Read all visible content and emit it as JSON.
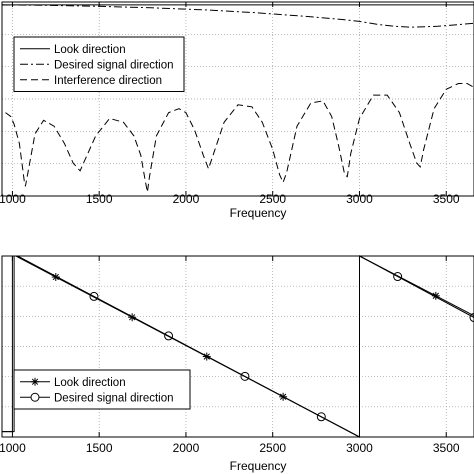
{
  "chart_data": [
    {
      "type": "line",
      "xlabel": "Frequency",
      "ylabel": "",
      "xlim": [
        940,
        3660
      ],
      "ylim": [
        0,
        1
      ],
      "grid": true,
      "legend_position": "top-left",
      "xticks": [
        1000,
        1500,
        2000,
        2500,
        3000,
        3500
      ],
      "series": [
        {
          "name": "Look direction",
          "style": "solid",
          "x": [
            940,
            3660
          ],
          "y": [
            0.985,
            0.985
          ]
        },
        {
          "name": "Desired signal direction",
          "style": "dash-dot",
          "x": [
            940,
            1200,
            1500,
            1800,
            2100,
            2400,
            2700,
            2900,
            3000,
            3100,
            3200,
            3300,
            3450,
            3660
          ],
          "y": [
            0.985,
            0.983,
            0.978,
            0.97,
            0.96,
            0.945,
            0.925,
            0.91,
            0.9,
            0.885,
            0.875,
            0.87,
            0.875,
            0.89
          ]
        },
        {
          "name": "Interference direction",
          "style": "dashed",
          "x": [
            960,
            990,
            1010,
            1040,
            1068,
            1075,
            1085,
            1130,
            1180,
            1240,
            1300,
            1350,
            1390,
            1420,
            1480,
            1560,
            1640,
            1700,
            1740,
            1765,
            1778,
            1790,
            1830,
            1900,
            1960,
            2000,
            2050,
            2100,
            2130,
            2160,
            2220,
            2300,
            2380,
            2440,
            2500,
            2540,
            2560,
            2580,
            2640,
            2720,
            2790,
            2840,
            2880,
            2915,
            2930,
            2950,
            3000,
            3080,
            3160,
            3230,
            3290,
            3330,
            3350,
            3370,
            3430,
            3500,
            3570,
            3620,
            3660
          ],
          "y": [
            0.43,
            0.41,
            0.37,
            0.27,
            0.08,
            0.05,
            0.1,
            0.32,
            0.39,
            0.36,
            0.27,
            0.17,
            0.13,
            0.19,
            0.31,
            0.4,
            0.38,
            0.31,
            0.21,
            0.08,
            0.02,
            0.1,
            0.31,
            0.43,
            0.45,
            0.43,
            0.34,
            0.21,
            0.14,
            0.22,
            0.38,
            0.47,
            0.46,
            0.38,
            0.24,
            0.11,
            0.07,
            0.12,
            0.36,
            0.48,
            0.49,
            0.41,
            0.26,
            0.11,
            0.1,
            0.22,
            0.4,
            0.52,
            0.52,
            0.43,
            0.27,
            0.17,
            0.15,
            0.24,
            0.45,
            0.55,
            0.58,
            0.58,
            0.56
          ]
        }
      ]
    },
    {
      "type": "line",
      "xlabel": "Frequency",
      "ylabel": "",
      "xlim": [
        940,
        3660
      ],
      "ylim": [
        0,
        1
      ],
      "grid": true,
      "legend_position": "bottom-left",
      "xticks": [
        1000,
        1500,
        2000,
        2500,
        3000,
        3500
      ],
      "series": [
        {
          "name": "Look direction",
          "marker": "asterisk",
          "style": "solid",
          "x": [
            940,
            1000,
            1000,
            1020,
            3000,
            3000,
            3660
          ],
          "y": [
            0.03,
            0.03,
            1.0,
            1.0,
            0.0,
            1.0,
            0.67
          ],
          "marker_x": [
            1250,
            1690,
            2120,
            2560,
            3440
          ]
        },
        {
          "name": "Desired signal direction",
          "marker": "circle",
          "style": "solid",
          "x": [
            940,
            1010,
            1010,
            1030,
            3000,
            3000,
            3660
          ],
          "y": [
            0.03,
            0.03,
            1.0,
            1.0,
            0.0,
            1.0,
            0.66
          ],
          "marker_x": [
            1470,
            1900,
            2340,
            2780,
            3220,
            3660
          ]
        }
      ]
    }
  ]
}
